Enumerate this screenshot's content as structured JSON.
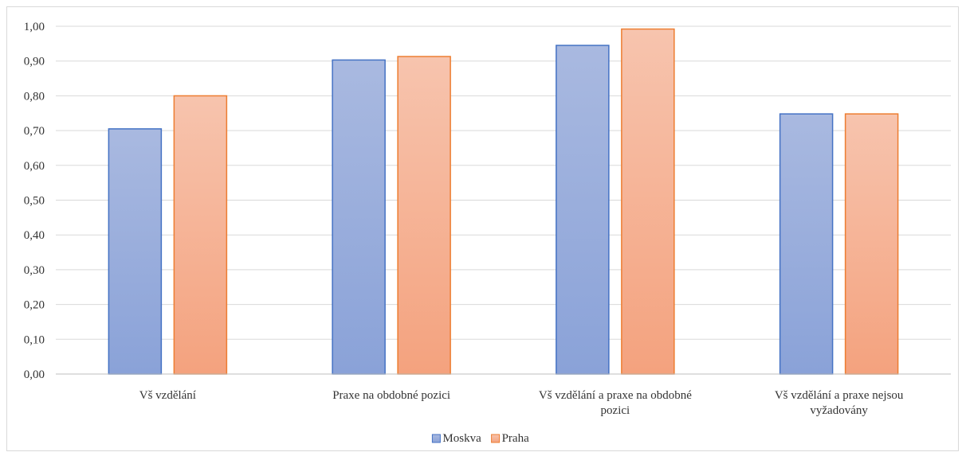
{
  "chart_data": {
    "type": "bar",
    "title": "",
    "xlabel": "",
    "ylabel": "",
    "ylim": [
      0,
      1.0
    ],
    "y_ticks": [
      "0,00",
      "0,10",
      "0,20",
      "0,30",
      "0,40",
      "0,50",
      "0,60",
      "0,70",
      "0,80",
      "0,90",
      "1,00"
    ],
    "grid": true,
    "legend_position": "bottom",
    "categories": [
      [
        "Vš vzdělání"
      ],
      [
        "Praxe na obdobné pozici"
      ],
      [
        "Vš vzdělání a praxe na obdobné",
        "pozici"
      ],
      [
        "Vš vzdělání a praxe nejsou",
        "vyžadovány"
      ]
    ],
    "series": [
      {
        "name": "Moskva",
        "values": [
          0.705,
          0.903,
          0.945,
          0.748
        ],
        "color_top": "#a9b9e0",
        "color_bottom": "#8aa2d8",
        "stroke": "#4472c4"
      },
      {
        "name": "Praha",
        "values": [
          0.8,
          0.913,
          0.992,
          0.748
        ],
        "color_top": "#f7c4ae",
        "color_bottom": "#f4a27e",
        "stroke": "#ed7d31"
      }
    ]
  }
}
